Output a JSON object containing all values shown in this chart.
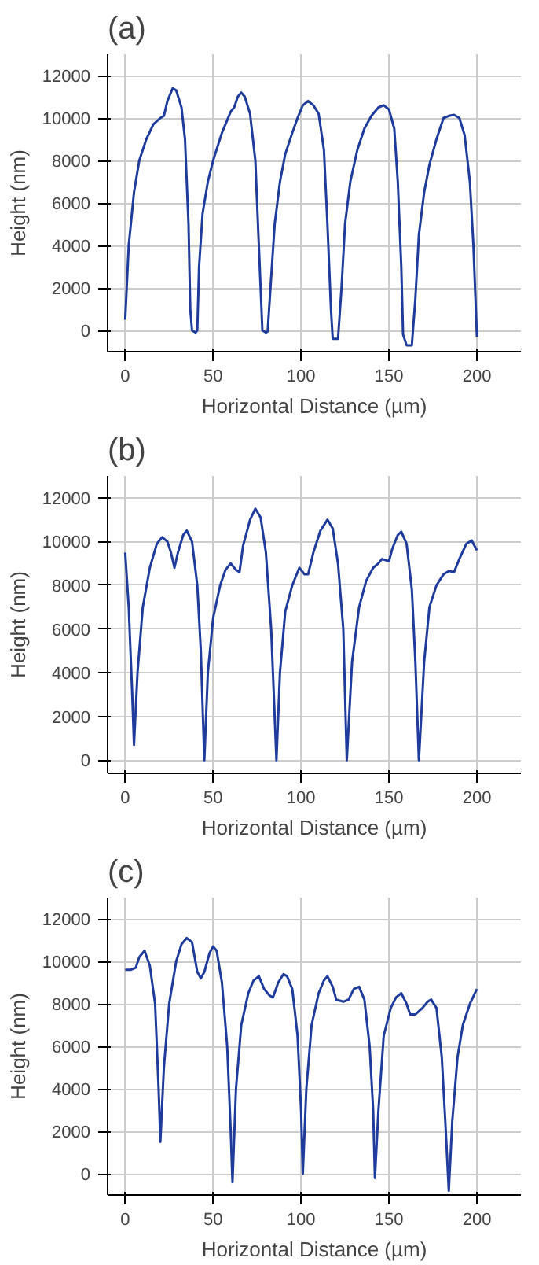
{
  "chart_data": [
    {
      "type": "line",
      "title": "(a)",
      "xlabel": "Horizontal Distance (µm)",
      "ylabel": "Height (nm)",
      "xlim": [
        -10,
        225
      ],
      "ylim": [
        -1000,
        13000
      ],
      "xticks": [
        0,
        50,
        100,
        150,
        200
      ],
      "yticks": [
        0,
        2000,
        4000,
        6000,
        8000,
        10000,
        12000
      ],
      "grid": true,
      "marker": "none",
      "line_style": "solid",
      "series": [
        {
          "color": "#1f3c9c",
          "x": [
            0,
            2,
            5,
            8,
            12,
            16,
            20,
            22,
            24,
            27,
            29,
            32,
            34,
            36,
            37,
            38,
            40,
            41,
            42,
            44,
            47,
            50,
            55,
            60,
            62,
            64,
            66,
            68,
            71,
            74,
            76,
            78,
            80,
            81,
            83,
            85,
            88,
            91,
            95,
            98,
            101,
            104,
            107,
            110,
            113,
            115,
            117,
            118,
            121,
            123,
            125,
            128,
            132,
            136,
            140,
            144,
            147,
            150,
            153,
            155,
            157,
            158,
            160,
            163,
            165,
            167,
            170,
            173,
            177,
            181,
            184,
            187,
            190,
            193,
            196,
            198,
            200
          ],
          "values": [
            500,
            4000,
            6500,
            8000,
            9000,
            9700,
            10000,
            10100,
            10800,
            11400,
            11300,
            10500,
            9000,
            5000,
            1000,
            0,
            -100,
            0,
            3000,
            5500,
            7000,
            8000,
            9300,
            10300,
            10500,
            11000,
            11200,
            11000,
            10200,
            8000,
            4000,
            0,
            -100,
            -50,
            2500,
            5000,
            7000,
            8300,
            9300,
            10000,
            10600,
            10800,
            10600,
            10200,
            8500,
            5000,
            1000,
            -400,
            -400,
            2000,
            5000,
            7000,
            8500,
            9500,
            10100,
            10500,
            10600,
            10400,
            9500,
            7000,
            3000,
            -200,
            -700,
            -700,
            1500,
            4500,
            6500,
            7800,
            9000,
            10000,
            10100,
            10150,
            10000,
            9200,
            7000,
            4000,
            -300
          ]
        }
      ]
    },
    {
      "type": "line",
      "title": "(b)",
      "xlabel": "Horizontal Distance (µm)",
      "ylabel": "Height (nm)",
      "xlim": [
        -10,
        225
      ],
      "ylim": [
        -600,
        13000
      ],
      "xticks": [
        0,
        50,
        100,
        150,
        200
      ],
      "yticks": [
        0,
        2000,
        4000,
        6000,
        8000,
        10000,
        12000
      ],
      "grid": true,
      "marker": "none",
      "line_style": "solid",
      "series": [
        {
          "color": "#1f3c9c",
          "x": [
            0,
            2,
            4,
            5,
            7,
            10,
            14,
            18,
            21,
            24,
            26,
            28,
            30,
            33,
            35,
            38,
            41,
            43,
            45,
            47,
            50,
            54,
            57,
            60,
            63,
            65,
            67,
            71,
            74,
            77,
            80,
            83,
            86,
            88,
            91,
            95,
            99,
            102,
            104,
            107,
            111,
            115,
            118,
            121,
            124,
            126,
            129,
            133,
            137,
            141,
            144,
            146,
            150,
            152,
            155,
            157,
            160,
            163,
            165,
            167,
            170,
            173,
            177,
            181,
            184,
            187,
            190,
            194,
            197,
            200
          ],
          "values": [
            9500,
            7000,
            3000,
            700,
            4000,
            7000,
            8800,
            9900,
            10200,
            10000,
            9500,
            8800,
            9500,
            10300,
            10500,
            10000,
            8000,
            5000,
            0,
            4000,
            6500,
            8000,
            8700,
            9000,
            8700,
            8600,
            9800,
            11000,
            11500,
            11100,
            9500,
            6000,
            0,
            4000,
            6800,
            8000,
            8800,
            8500,
            8500,
            9500,
            10500,
            11000,
            10600,
            9000,
            6000,
            0,
            4500,
            7000,
            8200,
            8800,
            9000,
            9200,
            9100,
            9700,
            10300,
            10450,
            9900,
            7800,
            4500,
            0,
            4500,
            7000,
            8000,
            8500,
            8650,
            8600,
            9200,
            9900,
            10050,
            9600
          ]
        }
      ]
    },
    {
      "type": "line",
      "title": "(c)",
      "xlabel": "Horizontal Distance (µm)",
      "ylabel": "Height (nm)",
      "xlim": [
        -10,
        225
      ],
      "ylim": [
        -1000,
        13000
      ],
      "xticks": [
        0,
        50,
        100,
        150,
        200
      ],
      "yticks": [
        0,
        2000,
        4000,
        6000,
        8000,
        10000,
        12000
      ],
      "grid": true,
      "marker": "none",
      "line_style": "solid",
      "series": [
        {
          "color": "#1f3c9c",
          "x": [
            0,
            3,
            6,
            8,
            11,
            14,
            17,
            19,
            20,
            22,
            25,
            29,
            32,
            35,
            38,
            41,
            43,
            45,
            48,
            50,
            52,
            55,
            58,
            60,
            61,
            63,
            66,
            70,
            73,
            76,
            79,
            82,
            84,
            87,
            90,
            92,
            95,
            98,
            100,
            101,
            103,
            106,
            110,
            113,
            115,
            118,
            120,
            124,
            127,
            130,
            133,
            136,
            139,
            141,
            142,
            144,
            147,
            151,
            154,
            157,
            160,
            162,
            165,
            169,
            172,
            174,
            177,
            180,
            182,
            184,
            186,
            189,
            192,
            196,
            200
          ],
          "values": [
            9600,
            9600,
            9700,
            10200,
            10500,
            9800,
            8000,
            4000,
            1500,
            5000,
            8000,
            10000,
            10800,
            11100,
            10900,
            9500,
            9200,
            9500,
            10400,
            10700,
            10500,
            9000,
            6000,
            2000,
            -400,
            4000,
            7000,
            8500,
            9100,
            9300,
            8700,
            8400,
            8300,
            9000,
            9400,
            9300,
            8700,
            6500,
            3000,
            0,
            4000,
            7000,
            8500,
            9100,
            9300,
            8800,
            8200,
            8100,
            8200,
            8700,
            8800,
            8200,
            6000,
            3000,
            -200,
            3000,
            6500,
            7800,
            8300,
            8500,
            8000,
            7500,
            7500,
            7800,
            8100,
            8200,
            7800,
            5500,
            2500,
            -800,
            2500,
            5500,
            7000,
            8000,
            8700
          ]
        }
      ]
    }
  ]
}
